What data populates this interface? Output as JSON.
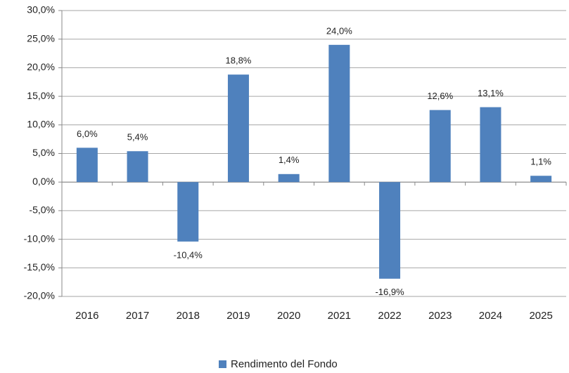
{
  "chart_data": {
    "type": "bar",
    "categories": [
      "2016",
      "2017",
      "2018",
      "2019",
      "2020",
      "2021",
      "2022",
      "2023",
      "2024",
      "2025"
    ],
    "series": [
      {
        "name": "Rendimento del Fondo",
        "color": "#4f81bd",
        "values": [
          6.0,
          5.4,
          -10.4,
          18.8,
          1.4,
          24.0,
          -16.9,
          12.6,
          13.1,
          1.1
        ],
        "value_labels": [
          "6,0%",
          "5,4%",
          "-10,4%",
          "18,8%",
          "1,4%",
          "24,0%",
          "-16,9%",
          "12,6%",
          "13,1%",
          "1,1%"
        ]
      }
    ],
    "ylim": [
      -20,
      30
    ],
    "yticks": [
      {
        "value": -20,
        "label": "-20,0%"
      },
      {
        "value": -15,
        "label": "-15,0%"
      },
      {
        "value": -10,
        "label": "-10,0%"
      },
      {
        "value": -5,
        "label": "-5,0%"
      },
      {
        "value": 0,
        "label": "0,0%"
      },
      {
        "value": 5,
        "label": "5,0%"
      },
      {
        "value": 10,
        "label": "10,0%"
      },
      {
        "value": 15,
        "label": "15,0%"
      },
      {
        "value": 20,
        "label": "20,0%"
      },
      {
        "value": 25,
        "label": "25,0%"
      },
      {
        "value": 30,
        "label": "30,0%"
      }
    ],
    "grid": true,
    "legend": "bottom"
  }
}
